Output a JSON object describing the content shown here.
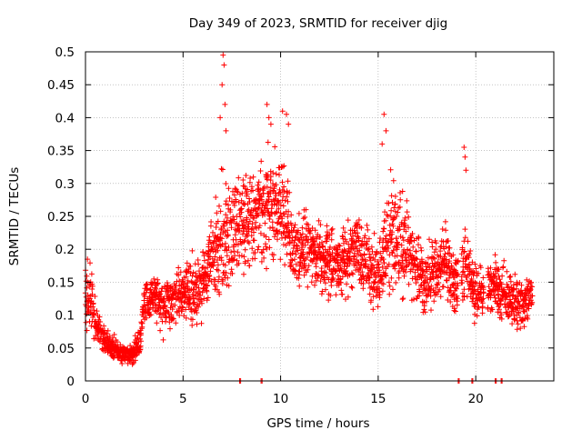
{
  "chart_data": {
    "type": "scatter",
    "title": "Day 349 of 2023, SRMTID for receiver djig",
    "xlabel": "GPS time / hours",
    "ylabel": "SRMTID / TECUs",
    "xlim": [
      0,
      24
    ],
    "ylim": [
      0,
      0.5
    ],
    "x_ticks": [
      0,
      5,
      10,
      15,
      20
    ],
    "x_tick_labels": [
      "0",
      "5",
      "10",
      "15",
      "20"
    ],
    "y_ticks": [
      0,
      0.05,
      0.1,
      0.15,
      0.2,
      0.25,
      0.3,
      0.35,
      0.4,
      0.45,
      0.5
    ],
    "y_tick_labels": [
      "0",
      "0.05",
      "0.1",
      "0.15",
      "0.2",
      "0.25",
      "0.3",
      "0.35",
      "0.4",
      "0.45",
      "0.5"
    ],
    "grid": true,
    "marker": "plus",
    "marker_color": "#ff0000",
    "series": [
      {
        "name": "SRMTID",
        "envelope": {
          "x": [
            0.0,
            0.2,
            0.5,
            1.0,
            1.5,
            2.0,
            2.5,
            2.8,
            3.0,
            3.5,
            4.0,
            4.5,
            5.0,
            5.5,
            6.0,
            6.5,
            7.0,
            7.5,
            8.0,
            8.5,
            9.0,
            9.5,
            10.0,
            10.5,
            11.0,
            11.5,
            12.0,
            12.5,
            13.0,
            13.5,
            14.0,
            14.5,
            15.0,
            15.5,
            16.0,
            16.5,
            17.0,
            17.5,
            18.0,
            18.5,
            19.0,
            19.5,
            20.0,
            20.5,
            21.0,
            21.5,
            22.0,
            22.5,
            22.9
          ],
          "center": [
            0.12,
            0.13,
            0.09,
            0.06,
            0.05,
            0.04,
            0.045,
            0.06,
            0.12,
            0.13,
            0.11,
            0.13,
            0.14,
            0.13,
            0.15,
            0.19,
            0.22,
            0.23,
            0.24,
            0.25,
            0.26,
            0.27,
            0.27,
            0.21,
            0.2,
            0.2,
            0.19,
            0.18,
            0.18,
            0.19,
            0.2,
            0.17,
            0.16,
            0.22,
            0.21,
            0.2,
            0.17,
            0.15,
            0.17,
            0.18,
            0.14,
            0.18,
            0.13,
            0.14,
            0.15,
            0.13,
            0.12,
            0.11,
            0.14
          ],
          "spread": [
            0.06,
            0.06,
            0.03,
            0.02,
            0.015,
            0.012,
            0.015,
            0.02,
            0.03,
            0.03,
            0.04,
            0.04,
            0.04,
            0.05,
            0.05,
            0.06,
            0.09,
            0.08,
            0.07,
            0.07,
            0.08,
            0.08,
            0.08,
            0.05,
            0.05,
            0.05,
            0.05,
            0.05,
            0.05,
            0.05,
            0.05,
            0.05,
            0.05,
            0.08,
            0.07,
            0.06,
            0.05,
            0.05,
            0.05,
            0.05,
            0.05,
            0.05,
            0.04,
            0.04,
            0.04,
            0.04,
            0.04,
            0.03,
            0.03
          ]
        },
        "gaps_hours": [
          [
            19.1,
            19.25
          ],
          [
            20.4,
            20.6
          ]
        ],
        "spikes": [
          {
            "x": 7.05,
            "y": 0.495
          },
          {
            "x": 7.1,
            "y": 0.48
          },
          {
            "x": 7.0,
            "y": 0.45
          },
          {
            "x": 7.15,
            "y": 0.42
          },
          {
            "x": 7.2,
            "y": 0.38
          },
          {
            "x": 6.9,
            "y": 0.4
          },
          {
            "x": 9.3,
            "y": 0.42
          },
          {
            "x": 9.4,
            "y": 0.4
          },
          {
            "x": 9.5,
            "y": 0.39
          },
          {
            "x": 10.1,
            "y": 0.41
          },
          {
            "x": 10.3,
            "y": 0.405
          },
          {
            "x": 10.4,
            "y": 0.39
          },
          {
            "x": 15.3,
            "y": 0.405
          },
          {
            "x": 15.4,
            "y": 0.38
          },
          {
            "x": 15.2,
            "y": 0.36
          },
          {
            "x": 19.4,
            "y": 0.355
          },
          {
            "x": 19.45,
            "y": 0.34
          },
          {
            "x": 19.5,
            "y": 0.32
          }
        ],
        "zero_points_x": [
          7.9,
          7.95,
          9.0,
          9.05,
          19.1,
          19.15,
          19.8,
          19.85,
          21.0,
          21.05,
          21.3,
          21.35
        ]
      }
    ]
  }
}
